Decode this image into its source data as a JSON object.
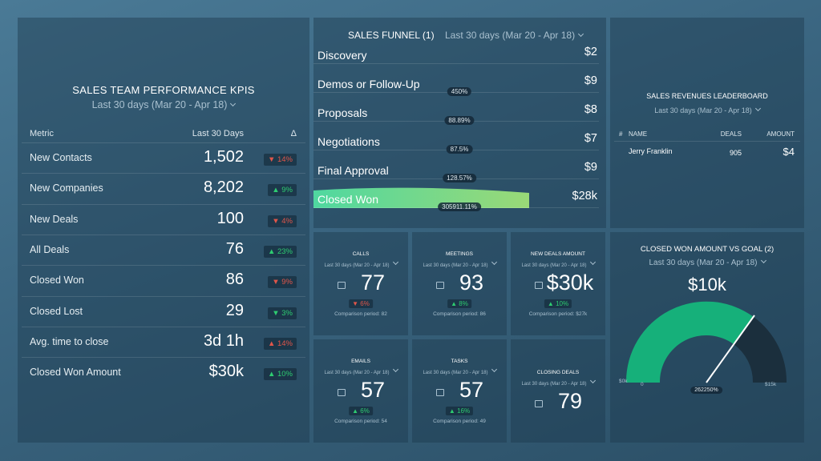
{
  "kpi_panel": {
    "title": "SALES TEAM PERFORMANCE KPIS",
    "period": "Last 30 days (Mar 20 - Apr 18)",
    "columns": [
      "Metric",
      "Last 30 Days",
      "Δ"
    ],
    "rows": [
      {
        "metric": "New Contacts",
        "value": "1,502",
        "delta": "▼ 14%",
        "delta_color": "#e0564a"
      },
      {
        "metric": "New Companies",
        "value": "8,202",
        "delta": "▲ 9%",
        "delta_color": "#2ecc71"
      },
      {
        "metric": "New Deals",
        "value": "100",
        "delta": "▼ 4%",
        "delta_color": "#e0564a"
      },
      {
        "metric": "All Deals",
        "value": "76",
        "delta": "▲ 23%",
        "delta_color": "#2ecc71"
      },
      {
        "metric": "Closed Won",
        "value": "86",
        "delta": "▼ 9%",
        "delta_color": "#e0564a"
      },
      {
        "metric": "Closed Lost",
        "value": "29",
        "delta": "▼ 3%",
        "delta_color": "#2ecc71"
      },
      {
        "metric": "Avg. time to close",
        "value": "3d 1h",
        "delta": "▲ 14%",
        "delta_color": "#e0564a"
      },
      {
        "metric": "Closed Won Amount",
        "value": "$30k",
        "delta": "▲ 10%",
        "delta_color": "#2ecc71"
      }
    ]
  },
  "funnel_panel": {
    "title": "SALES FUNNEL (1)",
    "period": "Last 30 days (Mar 20 - Apr 18)",
    "stages": [
      {
        "name": "Discovery",
        "value": "$2"
      },
      {
        "name": "Demos or Follow-Up",
        "value": "$9",
        "conversion": "450%"
      },
      {
        "name": "Proposals",
        "value": "$8",
        "conversion": "88.89%"
      },
      {
        "name": "Negotiations",
        "value": "$7",
        "conversion": "87.5%"
      },
      {
        "name": "Final Approval",
        "value": "$9",
        "conversion": "128.57%"
      },
      {
        "name": "Closed Won",
        "value": "$28k",
        "conversion": "305911.11%"
      }
    ]
  },
  "leaderboard_panel": {
    "title": "SALES REVENUES LEADERBOARD",
    "period": "Last 30 days (Mar 20 - Apr 18)",
    "columns": [
      "#",
      "NAME",
      "DEALS",
      "AMOUNT"
    ],
    "rows": [
      {
        "name": "Jerry Franklin",
        "deals": "905",
        "amount": "$4"
      }
    ]
  },
  "tiles": [
    {
      "title": "CALLS",
      "period": "Last 30 days (Mar 20 - Apr 18)",
      "value": "77",
      "delta": "▼ 6%",
      "delta_color": "#e0564a",
      "comparison": "Comparison period: 82"
    },
    {
      "title": "MEETINGS",
      "period": "Last 30 days (Mar 20 - Apr 18)",
      "value": "93",
      "delta": "▲ 8%",
      "delta_color": "#2ecc71",
      "comparison": "Comparison period: 86"
    },
    {
      "title": "NEW DEALS AMOUNT",
      "period": "Last 30 days (Mar 20 - Apr 18)",
      "value": "$30k",
      "delta": "▲ 10%",
      "delta_color": "#2ecc71",
      "comparison": "Comparison period: $27k"
    },
    {
      "title": "EMAILS",
      "period": "Last 30 days (Mar 20 - Apr 18)",
      "value": "57",
      "delta": "▲ 6%",
      "delta_color": "#2ecc71",
      "comparison": "Comparison period: 54"
    },
    {
      "title": "TASKS",
      "period": "Last 30 days (Mar 20 - Apr 18)",
      "value": "57",
      "delta": "▲ 16%",
      "delta_color": "#2ecc71",
      "comparison": "Comparison period: 49"
    },
    {
      "title": "CLOSING DEALS",
      "period": "Last 30 days (Mar 20 - Apr 18)",
      "value": "79"
    }
  ],
  "gauge_panel": {
    "title": "CLOSED WON AMOUNT VS GOAL (2)",
    "period": "Last 30 days (Mar 20 - Apr 18)",
    "value": "$10k",
    "min_label": "$0k",
    "zero_label": "0",
    "percent_label": "262250%",
    "max_label": "$15k"
  }
}
